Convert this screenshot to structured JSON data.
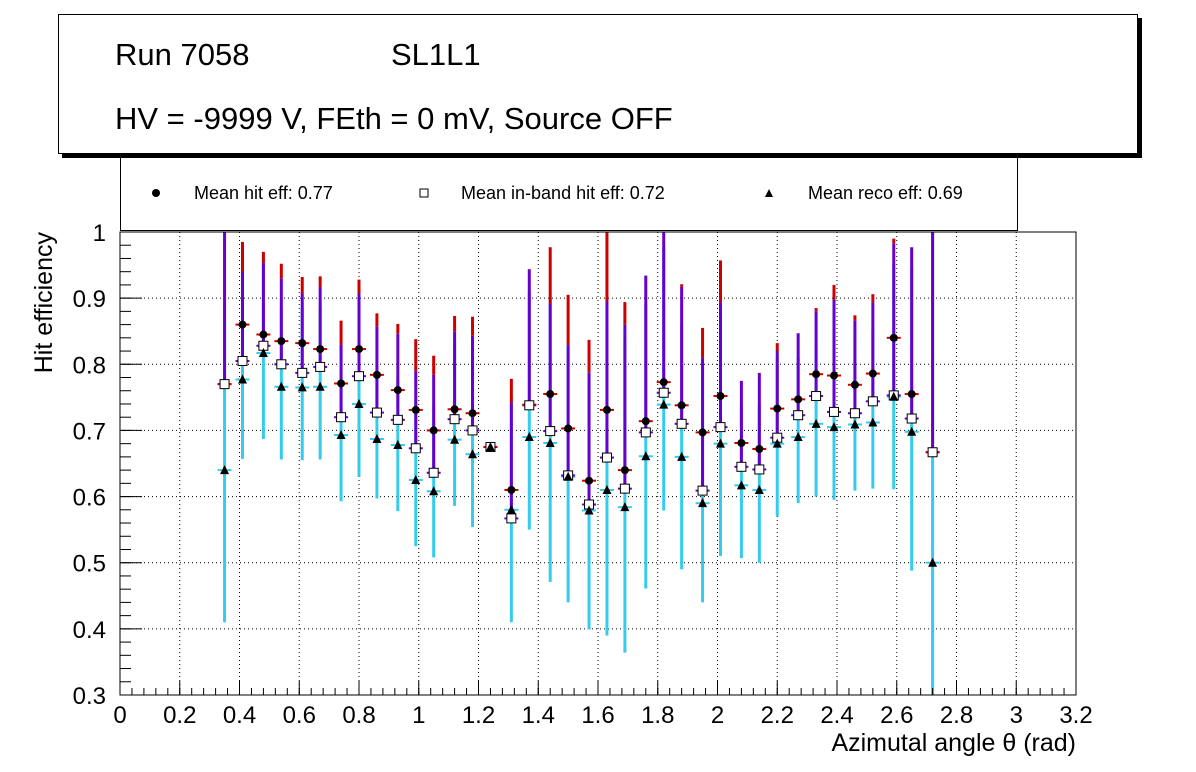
{
  "header": {
    "run_label": "Run 7058",
    "layer_label": "SL1L1",
    "conditions": "HV = -9999 V, FEth = 0 mV, Source OFF"
  },
  "legend": {
    "hit": "Mean hit  eff: 0.77",
    "inband": "Mean in-band hit eff: 0.72",
    "reco": "Mean reco eff: 0.69"
  },
  "colors": {
    "hit_error": "#cc0000",
    "inband_error": "#6600cc",
    "reco_error": "#33ccee",
    "marker": "#000000",
    "grid": "#000000"
  },
  "chart_data": {
    "type": "scatter",
    "title": "",
    "xlabel": "Azimutal angle θ (rad)",
    "ylabel": "Hit efficiency",
    "xlim": [
      0,
      3.2
    ],
    "ylim": [
      0.3,
      1.0
    ],
    "xticks": [
      "0",
      "0.2",
      "0.4",
      "0.6",
      "0.8",
      "1",
      "1.2",
      "1.4",
      "1.6",
      "1.8",
      "2",
      "2.2",
      "2.4",
      "2.6",
      "2.8",
      "3",
      "3.2"
    ],
    "yticks": [
      "0.3",
      "0.4",
      "0.5",
      "0.6",
      "0.7",
      "0.8",
      "0.9",
      "1"
    ],
    "grid": true,
    "x": [
      0.35,
      0.41,
      0.48,
      0.54,
      0.61,
      0.67,
      0.74,
      0.8,
      0.86,
      0.93,
      0.99,
      1.05,
      1.12,
      1.18,
      1.24,
      1.31,
      1.37,
      1.44,
      1.5,
      1.57,
      1.63,
      1.69,
      1.76,
      1.82,
      1.88,
      1.95,
      2.01,
      2.08,
      2.14,
      2.2,
      2.27,
      2.33,
      2.39,
      2.46,
      2.52,
      2.59,
      2.65,
      2.72
    ],
    "series": [
      {
        "name": "Mean hit  eff: 0.77",
        "marker": "circle",
        "values": [
          0.77,
          0.86,
          0.845,
          0.835,
          0.832,
          0.823,
          0.771,
          0.823,
          0.784,
          0.761,
          0.731,
          0.7,
          0.732,
          0.726,
          0.675,
          0.61,
          0.739,
          0.755,
          0.703,
          0.624,
          0.731,
          0.64,
          0.714,
          0.773,
          0.738,
          0.697,
          0.752,
          0.681,
          0.672,
          0.733,
          0.747,
          0.785,
          0.783,
          0.769,
          0.786,
          0.84,
          0.755,
          0.667
        ],
        "err_up": [
          0.23,
          0.125,
          0.125,
          0.117,
          0.1,
          0.11,
          0.095,
          0.105,
          0.093,
          0.1,
          0.107,
          0.113,
          0.141,
          0.146,
          0.0,
          0.168,
          0.205,
          0.222,
          0.202,
          0.213,
          0.27,
          0.254,
          0.21,
          0.227,
          0.183,
          0.158,
          0.205,
          0.08,
          0.115,
          0.099,
          0.095,
          0.1,
          0.137,
          0.105,
          0.12,
          0.15,
          0.222,
          0.333
        ]
      },
      {
        "name": "Mean in-band hit eff: 0.72",
        "marker": "open-square",
        "values": [
          0.77,
          0.805,
          0.828,
          0.8,
          0.787,
          0.796,
          0.72,
          0.782,
          0.727,
          0.716,
          0.673,
          0.636,
          0.717,
          0.7,
          0.675,
          0.567,
          0.738,
          0.699,
          0.632,
          0.588,
          0.659,
          0.612,
          0.697,
          0.757,
          0.71,
          0.609,
          0.705,
          0.645,
          0.641,
          0.689,
          0.723,
          0.752,
          0.728,
          0.726,
          0.744,
          0.753,
          0.718,
          0.667
        ],
        "err_up": [
          0.23,
          0.135,
          0.125,
          0.13,
          0.12,
          0.12,
          0.11,
          0.125,
          0.13,
          0.13,
          0.117,
          0.148,
          0.133,
          0.143,
          0.0,
          0.175,
          0.205,
          0.193,
          0.197,
          0.2,
          0.236,
          0.248,
          0.237,
          0.243,
          0.207,
          0.201,
          0.189,
          0.13,
          0.145,
          0.131,
          0.124,
          0.128,
          0.17,
          0.14,
          0.15,
          0.23,
          0.259,
          0.333
        ]
      },
      {
        "name": "Mean reco eff: 0.69",
        "marker": "triangle",
        "values": [
          0.64,
          0.777,
          0.817,
          0.766,
          0.765,
          0.766,
          0.693,
          0.74,
          0.687,
          0.678,
          0.625,
          0.608,
          0.686,
          0.664,
          0.675,
          0.58,
          0.69,
          0.681,
          0.63,
          0.579,
          0.61,
          0.584,
          0.661,
          0.739,
          0.66,
          0.59,
          0.68,
          0.617,
          0.61,
          0.68,
          0.69,
          0.71,
          0.705,
          0.709,
          0.712,
          0.751,
          0.698,
          0.5
        ],
        "err_up": [
          0.23,
          0.18,
          0.15,
          0.12,
          0.12,
          0.12,
          0.1,
          0.11,
          0.1,
          0.1,
          0.12,
          0.13,
          0.15,
          0.16,
          0.0,
          0.17,
          0.22,
          0.22,
          0.2,
          0.2,
          0.25,
          0.25,
          0.23,
          0.24,
          0.2,
          0.2,
          0.19,
          0.12,
          0.13,
          0.13,
          0.12,
          0.12,
          0.16,
          0.13,
          0.14,
          0.2,
          0.25,
          0.5
        ],
        "err_down": [
          0.23,
          0.12,
          0.13,
          0.11,
          0.11,
          0.11,
          0.1,
          0.11,
          0.09,
          0.1,
          0.1,
          0.1,
          0.1,
          0.11,
          0.0,
          0.17,
          0.14,
          0.21,
          0.19,
          0.18,
          0.22,
          0.22,
          0.2,
          0.16,
          0.17,
          0.15,
          0.17,
          0.11,
          0.11,
          0.11,
          0.1,
          0.11,
          0.11,
          0.1,
          0.1,
          0.14,
          0.21,
          0.2
        ]
      }
    ]
  }
}
